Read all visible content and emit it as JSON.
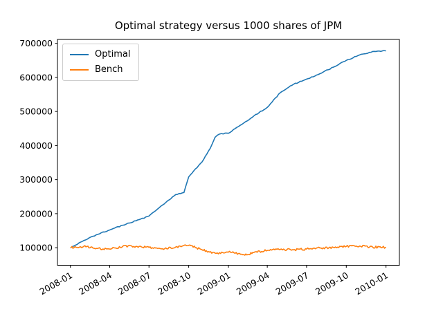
{
  "figure": {
    "background": "#ffffff",
    "text_color": "#000000"
  },
  "legend": {
    "position": "upper-left",
    "items": [
      {
        "label": "Optimal",
        "color": "#1f77b4"
      },
      {
        "label": "Bench",
        "color": "#ff7f0e"
      }
    ]
  },
  "chart_data": {
    "type": "line",
    "title": "Optimal strategy versus 1000 shares of JPM",
    "xlabel": "",
    "ylabel": "",
    "grid": false,
    "legend_position": "upper-left",
    "x_tick_labels": [
      "2008-01",
      "2008-04",
      "2008-07",
      "2008-10",
      "2009-01",
      "2009-04",
      "2009-07",
      "2009-10",
      "2010-01"
    ],
    "y_ticks": [
      100000,
      200000,
      300000,
      400000,
      500000,
      600000,
      700000
    ],
    "ylim": [
      48500,
      711500
    ],
    "xlim_dates": [
      "2007-12-02",
      "2010-02-01"
    ],
    "x_tick_rotation_deg": 30,
    "series": [
      {
        "name": "Optimal",
        "color": "#1f77b4",
        "points": [
          [
            "2008-01-02",
            100000
          ],
          [
            "2008-02-01",
            121000
          ],
          [
            "2008-03-01",
            138000
          ],
          [
            "2008-04-01",
            152000
          ],
          [
            "2008-05-01",
            166000
          ],
          [
            "2008-06-01",
            179000
          ],
          [
            "2008-07-01",
            193000
          ],
          [
            "2008-08-01",
            225000
          ],
          [
            "2008-09-01",
            256000
          ],
          [
            "2008-09-20",
            262000
          ],
          [
            "2008-10-01",
            308000
          ],
          [
            "2008-11-01",
            352000
          ],
          [
            "2008-11-20",
            392000
          ],
          [
            "2008-12-01",
            424000
          ],
          [
            "2008-12-12",
            434000
          ],
          [
            "2009-01-01",
            436000
          ],
          [
            "2009-02-01",
            462000
          ],
          [
            "2009-03-01",
            487000
          ],
          [
            "2009-04-01",
            512000
          ],
          [
            "2009-05-01",
            555000
          ],
          [
            "2009-06-01",
            580000
          ],
          [
            "2009-07-01",
            595000
          ],
          [
            "2009-08-01",
            611000
          ],
          [
            "2009-09-01",
            630000
          ],
          [
            "2009-10-01",
            650000
          ],
          [
            "2009-11-01",
            666000
          ],
          [
            "2009-12-01",
            676000
          ],
          [
            "2009-12-31",
            678000
          ]
        ]
      },
      {
        "name": "Bench",
        "color": "#ff7f0e",
        "points": [
          [
            "2008-01-02",
            100000
          ],
          [
            "2008-02-01",
            104000
          ],
          [
            "2008-03-01",
            98000
          ],
          [
            "2008-04-01",
            96000
          ],
          [
            "2008-05-01",
            104000
          ],
          [
            "2008-06-01",
            104000
          ],
          [
            "2008-07-01",
            101000
          ],
          [
            "2008-08-01",
            97000
          ],
          [
            "2008-09-01",
            102000
          ],
          [
            "2008-10-01",
            107000
          ],
          [
            "2008-11-01",
            94000
          ],
          [
            "2008-12-01",
            84000
          ],
          [
            "2009-01-01",
            87000
          ],
          [
            "2009-02-01",
            81000
          ],
          [
            "2009-02-15",
            80000
          ],
          [
            "2009-03-01",
            86000
          ],
          [
            "2009-04-01",
            92000
          ],
          [
            "2009-05-01",
            95000
          ],
          [
            "2009-06-01",
            94000
          ],
          [
            "2009-07-01",
            96000
          ],
          [
            "2009-08-01",
            99000
          ],
          [
            "2009-09-01",
            101000
          ],
          [
            "2009-10-01",
            104000
          ],
          [
            "2009-11-01",
            105000
          ],
          [
            "2009-12-01",
            102000
          ],
          [
            "2009-12-31",
            101000
          ]
        ]
      }
    ]
  }
}
